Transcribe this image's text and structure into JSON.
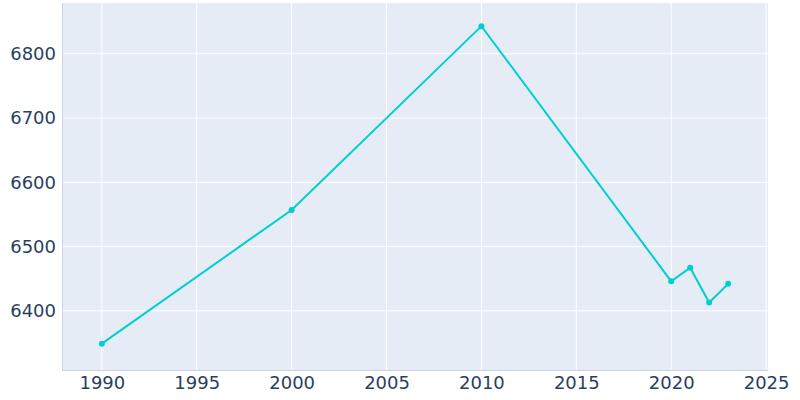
{
  "chart_data": {
    "type": "line",
    "x": [
      1990,
      2000,
      2010,
      2020,
      2021,
      2022,
      2023
    ],
    "values": [
      6349,
      6557,
      6843,
      6446,
      6467,
      6413,
      6442
    ],
    "color": "#00CED1",
    "marker": "circle",
    "xlim": [
      1987.9,
      2025.1
    ],
    "xticks": [
      1990,
      1995,
      2000,
      2005,
      2010,
      2015,
      2020,
      2025
    ],
    "ylim": [
      6308,
      6879
    ],
    "yticks": [
      6400,
      6500,
      6600,
      6700,
      6800
    ],
    "grid": true
  }
}
